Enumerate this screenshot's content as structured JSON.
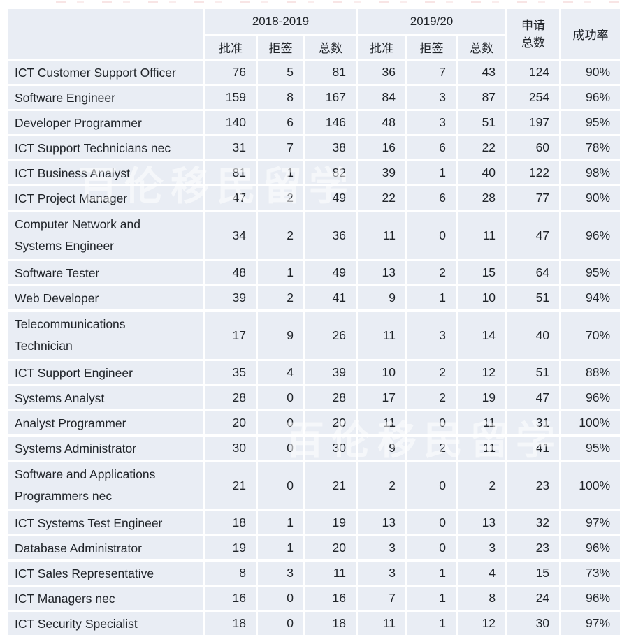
{
  "chart_data": {
    "type": "table",
    "year_groups": [
      {
        "label": "2018-2019",
        "span": 3
      },
      {
        "label": "2019/20",
        "span": 3
      }
    ],
    "sub_columns": [
      "批准",
      "拒签",
      "总数",
      "批准",
      "拒签",
      "总数"
    ],
    "applications_header": {
      "line1": "申请",
      "line2": "总数"
    },
    "success_header": "成功率",
    "rows": [
      [
        "ICT Customer Support Officer",
        76,
        5,
        81,
        36,
        7,
        43,
        124,
        "90%"
      ],
      [
        "Software Engineer",
        159,
        8,
        167,
        84,
        3,
        87,
        254,
        "96%"
      ],
      [
        "Developer Programmer",
        140,
        6,
        146,
        48,
        3,
        51,
        197,
        "95%"
      ],
      [
        "ICT Support Technicians nec",
        31,
        7,
        38,
        16,
        6,
        22,
        60,
        "78%"
      ],
      [
        "ICT Business Analyst",
        81,
        1,
        82,
        39,
        1,
        40,
        122,
        "98%"
      ],
      [
        "ICT Project Manager",
        47,
        2,
        49,
        22,
        6,
        28,
        77,
        "90%"
      ],
      [
        "Computer Network and\nSystems Engineer",
        34,
        2,
        36,
        11,
        0,
        11,
        47,
        "96%"
      ],
      [
        "Software Tester",
        48,
        1,
        49,
        13,
        2,
        15,
        64,
        "95%"
      ],
      [
        "Web Developer",
        39,
        2,
        41,
        9,
        1,
        10,
        51,
        "94%"
      ],
      [
        "Telecommunications\nTechnician",
        17,
        9,
        26,
        11,
        3,
        14,
        40,
        "70%"
      ],
      [
        "ICT Support Engineer",
        35,
        4,
        39,
        10,
        2,
        12,
        51,
        "88%"
      ],
      [
        "Systems Analyst",
        28,
        0,
        28,
        17,
        2,
        19,
        47,
        "96%"
      ],
      [
        "Analyst Programmer",
        20,
        0,
        20,
        11,
        0,
        11,
        31,
        "100%"
      ],
      [
        "Systems Administrator",
        30,
        0,
        30,
        9,
        2,
        11,
        41,
        "95%"
      ],
      [
        "Software and Applications\nProgrammers nec",
        21,
        0,
        21,
        2,
        0,
        2,
        23,
        "100%"
      ],
      [
        "ICT Systems Test Engineer",
        18,
        1,
        19,
        13,
        0,
        13,
        32,
        "97%"
      ],
      [
        "Database Administrator",
        19,
        1,
        20,
        3,
        0,
        3,
        23,
        "96%"
      ],
      [
        "ICT Sales Representative",
        8,
        3,
        11,
        3,
        1,
        4,
        15,
        "73%"
      ],
      [
        "ICT Managers nec",
        16,
        0,
        16,
        7,
        1,
        8,
        24,
        "96%"
      ],
      [
        "ICT Security Specialist",
        18,
        0,
        18,
        11,
        1,
        12,
        30,
        "97%"
      ]
    ],
    "watermark": "百伦移民留学",
    "colors": {
      "cell_background": "#e9edf4",
      "grid_gap": "#ffffff",
      "text": "#1f2328",
      "watermark": "rgba(255,255,255,0.55)"
    },
    "layout": {
      "grid": "white 3px gaps between light blue-grey cells",
      "header_rows": 2,
      "data_rows": 20
    }
  }
}
